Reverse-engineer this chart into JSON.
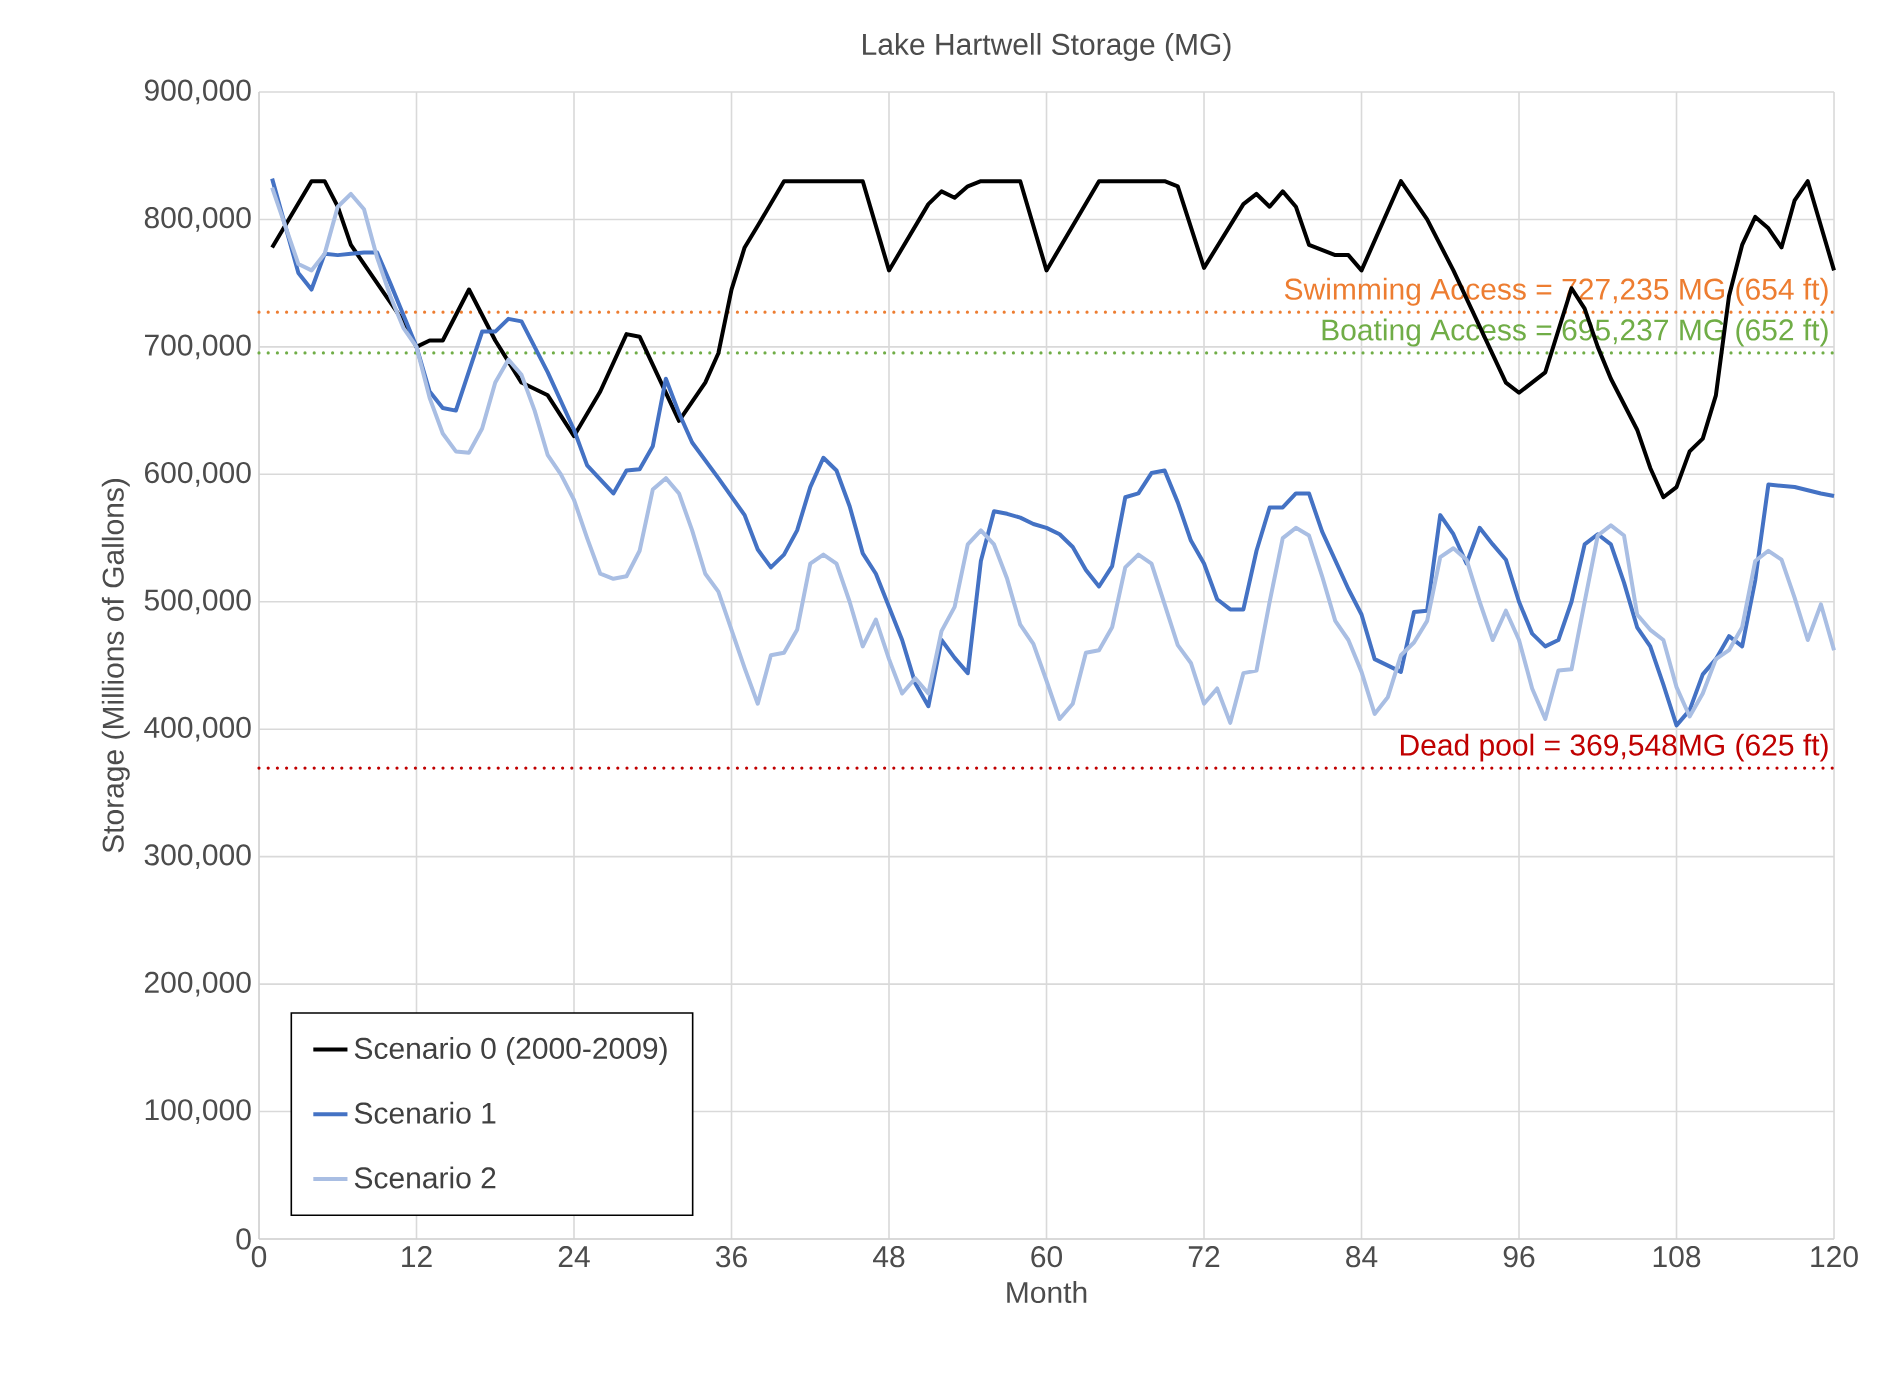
{
  "chart_data": {
    "type": "line",
    "title": "Lake Hartwell Storage (MG)",
    "xlabel": "Month",
    "ylabel": "Storage (Millions of Gallons)",
    "xlim": [
      0,
      120
    ],
    "xticks": [
      0,
      12,
      24,
      36,
      48,
      60,
      72,
      84,
      96,
      108,
      120
    ],
    "ylim": [
      0,
      900000
    ],
    "yticks": [
      {
        "value": 0,
        "label": "0"
      },
      {
        "value": 100000,
        "label": "100,000"
      },
      {
        "value": 200000,
        "label": "200,000"
      },
      {
        "value": 300000,
        "label": "300,000"
      },
      {
        "value": 400000,
        "label": "400,000"
      },
      {
        "value": 500000,
        "label": "500,000"
      },
      {
        "value": 600000,
        "label": "600,000"
      },
      {
        "value": 700000,
        "label": "700,000"
      },
      {
        "value": 800000,
        "label": "800,000"
      },
      {
        "value": 900000,
        "label": "900,000"
      }
    ],
    "grid": true,
    "legend": "bottom left",
    "marker": "none",
    "line_style": "solid",
    "series": [
      {
        "name": "Scenario 0 (2000-2009)",
        "color": "#000000",
        "x": [
          1,
          4,
          5,
          6,
          7,
          9,
          11,
          12,
          13,
          14,
          16,
          18,
          20,
          22,
          24,
          26,
          28,
          29,
          32,
          34,
          35,
          36,
          37,
          38,
          40,
          46,
          48,
          51,
          52,
          53,
          54,
          55,
          58,
          60,
          64,
          69,
          70,
          72,
          75,
          76,
          77,
          78,
          79,
          80,
          82,
          83,
          84,
          87,
          88,
          89,
          91,
          95,
          96,
          98,
          100,
          101,
          102,
          103,
          105,
          106,
          107,
          108,
          109,
          110,
          111,
          112,
          113,
          114,
          115,
          116,
          117,
          118,
          120
        ],
        "values": [
          778000,
          830000,
          830000,
          810000,
          780000,
          750000,
          720000,
          700000,
          705000,
          705000,
          745000,
          705000,
          672000,
          662000,
          630000,
          665000,
          710000,
          708000,
          642000,
          672000,
          695000,
          745000,
          778000,
          795000,
          830000,
          830000,
          760000,
          812000,
          822000,
          817000,
          826000,
          830000,
          830000,
          760000,
          830000,
          830000,
          826000,
          762000,
          812000,
          820000,
          810000,
          822000,
          810000,
          780000,
          772000,
          772000,
          760000,
          830000,
          815000,
          800000,
          760000,
          672000,
          664000,
          680000,
          746000,
          730000,
          700000,
          675000,
          635000,
          605000,
          582000,
          590000,
          618000,
          628000,
          662000,
          740000,
          780000,
          802000,
          793000,
          778000,
          815000,
          830000,
          760000
        ]
      },
      {
        "name": "Scenario 1",
        "color": "#4472c4",
        "x": [
          1,
          3,
          4,
          5,
          6,
          7,
          8,
          9,
          10,
          12,
          13,
          14,
          15,
          17,
          18,
          19,
          20,
          22,
          24,
          25,
          27,
          28,
          29,
          30,
          31,
          32,
          33,
          35,
          37,
          38,
          39,
          40,
          41,
          42,
          43,
          44,
          45,
          46,
          47,
          49,
          50,
          51,
          52,
          53,
          54,
          55,
          56,
          57,
          58,
          59,
          60,
          61,
          62,
          63,
          64,
          65,
          66,
          67,
          68,
          69,
          70,
          71,
          72,
          73,
          74,
          75,
          76,
          77,
          78,
          79,
          80,
          81,
          83,
          84,
          85,
          87,
          88,
          89,
          90,
          91,
          92,
          93,
          94,
          95,
          96,
          97,
          98,
          99,
          100,
          101,
          102,
          103,
          104,
          105,
          106,
          107,
          108,
          109,
          110,
          111,
          112,
          113,
          114,
          115,
          117,
          119,
          120
        ],
        "values": [
          832000,
          758000,
          745000,
          773000,
          772000,
          773000,
          774000,
          774000,
          750000,
          700000,
          665000,
          652000,
          650000,
          712000,
          712000,
          722000,
          720000,
          680000,
          635000,
          607000,
          585000,
          603000,
          604000,
          622000,
          675000,
          648000,
          625000,
          597000,
          568000,
          541000,
          527000,
          537000,
          556000,
          590000,
          613000,
          603000,
          575000,
          538000,
          522000,
          470000,
          436000,
          418000,
          470000,
          456000,
          444000,
          532000,
          571000,
          569000,
          566000,
          561000,
          558000,
          553000,
          543000,
          525000,
          512000,
          528000,
          582000,
          585000,
          601000,
          603000,
          578000,
          548000,
          530000,
          502000,
          494000,
          494000,
          540000,
          574000,
          574000,
          585000,
          585000,
          555000,
          510000,
          490000,
          455000,
          445000,
          492000,
          493000,
          568000,
          553000,
          530000,
          558000,
          545000,
          533000,
          500000,
          475000,
          465000,
          470000,
          500000,
          545000,
          553000,
          545000,
          515000,
          480000,
          465000,
          435000,
          403000,
          415000,
          443000,
          455000,
          473000,
          465000,
          517000,
          592000,
          590000,
          585000,
          583000
        ]
      },
      {
        "name": "Scenario 2",
        "color": "#a9bee3",
        "x": [
          1,
          2,
          3,
          4,
          5,
          6,
          7,
          8,
          9,
          10,
          11,
          12,
          13,
          14,
          15,
          16,
          17,
          18,
          19,
          20,
          21,
          22,
          23,
          24,
          25,
          26,
          27,
          28,
          29,
          30,
          31,
          32,
          33,
          34,
          35,
          36,
          37,
          38,
          39,
          40,
          41,
          42,
          43,
          44,
          45,
          46,
          47,
          48,
          49,
          50,
          51,
          52,
          53,
          54,
          55,
          56,
          57,
          58,
          59,
          60,
          61,
          62,
          63,
          64,
          65,
          66,
          67,
          68,
          69,
          70,
          71,
          72,
          73,
          74,
          75,
          76,
          77,
          78,
          79,
          80,
          81,
          82,
          83,
          84,
          85,
          86,
          87,
          88,
          89,
          90,
          91,
          92,
          93,
          94,
          95,
          96,
          97,
          98,
          99,
          100,
          101,
          102,
          103,
          104,
          105,
          106,
          107,
          108,
          109,
          110,
          111,
          112,
          113,
          114,
          115,
          116,
          117,
          118,
          119,
          120
        ],
        "values": [
          825000,
          795000,
          765000,
          760000,
          773000,
          810000,
          820000,
          808000,
          770000,
          740000,
          715000,
          700000,
          660000,
          632000,
          618000,
          617000,
          636000,
          672000,
          690000,
          678000,
          650000,
          615000,
          600000,
          580000,
          550000,
          522000,
          518000,
          520000,
          540000,
          588000,
          597000,
          585000,
          556000,
          522000,
          508000,
          478000,
          448000,
          420000,
          458000,
          460000,
          478000,
          530000,
          537000,
          530000,
          500000,
          465000,
          486000,
          455000,
          428000,
          440000,
          428000,
          477000,
          496000,
          545000,
          556000,
          545000,
          518000,
          482000,
          467000,
          438000,
          408000,
          420000,
          460000,
          462000,
          480000,
          527000,
          537000,
          530000,
          498000,
          466000,
          452000,
          420000,
          432000,
          405000,
          444000,
          446000,
          500000,
          550000,
          558000,
          552000,
          520000,
          485000,
          470000,
          445000,
          412000,
          425000,
          458000,
          468000,
          485000,
          535000,
          542000,
          533000,
          500000,
          470000,
          493000,
          470000,
          432000,
          408000,
          446000,
          447000,
          500000,
          552000,
          560000,
          552000,
          490000,
          478000,
          470000,
          433000,
          410000,
          428000,
          455000,
          462000,
          480000,
          532000,
          540000,
          533000,
          503000,
          470000,
          498000,
          462000
        ]
      }
    ],
    "ref_lines": [
      {
        "axis": "y",
        "value": 727235,
        "label": "Swimming Access = 727,235 MG (654 ft)",
        "color": "#ed7d31",
        "line_style": "dotted"
      },
      {
        "axis": "y",
        "value": 695237,
        "label": "Boating Access = 695,237 MG (652 ft)",
        "color": "#70ad47",
        "line_style": "dotted"
      },
      {
        "axis": "y",
        "value": 369548,
        "label": "Dead pool = 369,548MG (625 ft)",
        "color": "#c00000",
        "line_style": "dotted"
      }
    ]
  }
}
